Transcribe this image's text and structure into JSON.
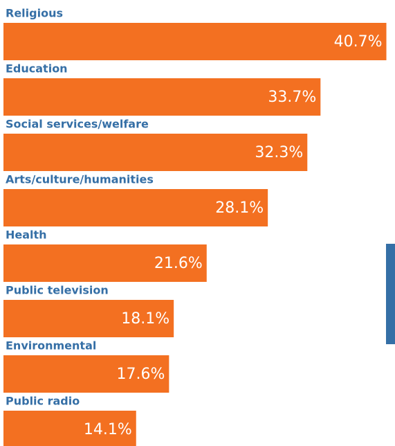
{
  "chart_data": {
    "type": "bar",
    "categories": [
      "Religious",
      "Education",
      "Social services/welfare",
      "Arts/culture/humanities",
      "Health",
      "Public television",
      "Environmental",
      "Public radio"
    ],
    "values": [
      40.7,
      33.7,
      32.3,
      28.1,
      21.6,
      18.1,
      17.6,
      14.1
    ],
    "value_labels": [
      "40.7%",
      "33.7%",
      "32.3%",
      "28.1%",
      "21.6%",
      "18.1%",
      "17.6%",
      "14.1%"
    ],
    "color": "#f37021",
    "label_color": "#356fa6"
  }
}
